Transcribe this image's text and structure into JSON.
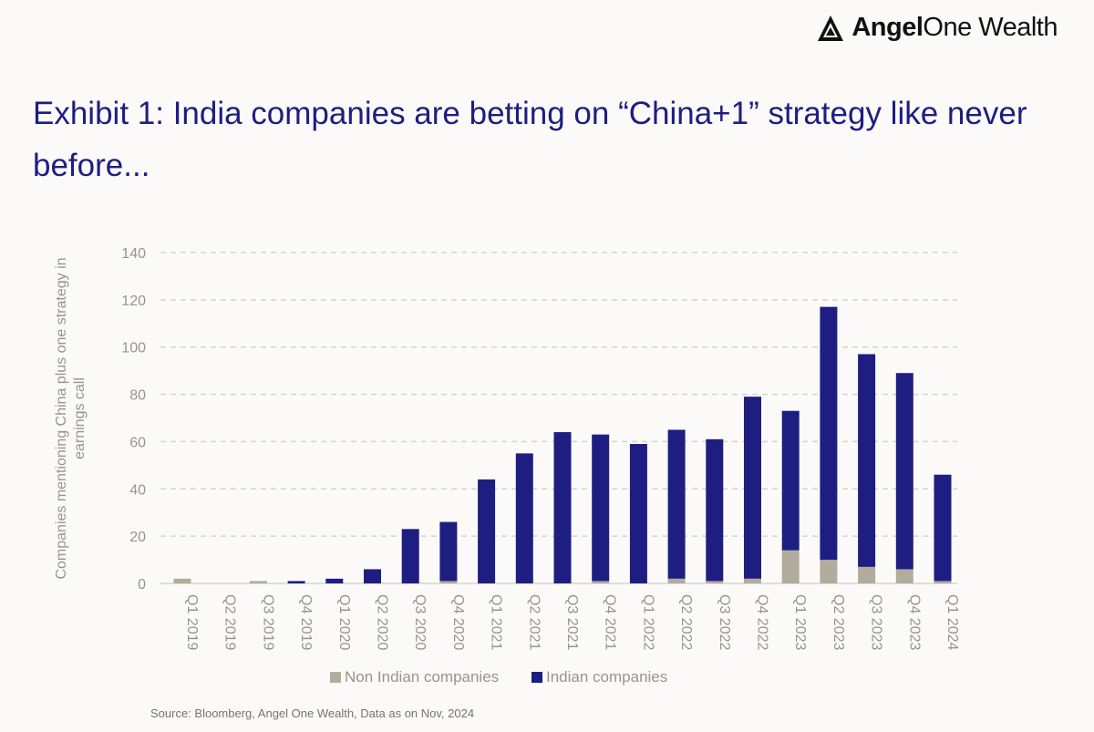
{
  "brand": {
    "name_bold": "Angel",
    "name_rest": "One Wealth",
    "logo": "angelone-triangle-logo"
  },
  "title": "Exhibit 1: India companies are betting on “China+1” strategy like never before...",
  "source": "Source: Bloomberg, Angel One Wealth, Data as on Nov, 2024",
  "colors": {
    "indian": "#1e1e82",
    "non_indian": "#b1ac9c",
    "axis_text": "#9a9488",
    "grid": "#d6d3cd",
    "title": "#1e1e82"
  },
  "chart_data": {
    "type": "bar",
    "stacked": true,
    "title": "Exhibit 1: India companies are betting on “China+1” strategy like never before...",
    "xlabel": "",
    "ylabel": "Companies mentioning China plus one strategy in earnings call",
    "ylim": [
      0,
      140
    ],
    "yticks": [
      0,
      20,
      40,
      60,
      80,
      100,
      120,
      140
    ],
    "grid": true,
    "legend_position": "bottom",
    "categories": [
      "Q1 2019",
      "Q2 2019",
      "Q3 2019",
      "Q4 2019",
      "Q1 2020",
      "Q2 2020",
      "Q3 2020",
      "Q4 2020",
      "Q1 2021",
      "Q2 2021",
      "Q3 2021",
      "Q4 2021",
      "Q1 2022",
      "Q2 2022",
      "Q3 2022",
      "Q4 2022",
      "Q1 2023",
      "Q2 2023",
      "Q3 2023",
      "Q4 2023",
      "Q1 2024"
    ],
    "series": [
      {
        "name": "Non Indian companies",
        "values": [
          2,
          0,
          1,
          0,
          0,
          0,
          0,
          1,
          0,
          0,
          0,
          1,
          0,
          2,
          1,
          2,
          14,
          10,
          7,
          6,
          1
        ]
      },
      {
        "name": "Indian companies",
        "values": [
          0,
          0,
          0,
          1,
          2,
          6,
          23,
          25,
          44,
          55,
          64,
          62,
          59,
          63,
          60,
          77,
          59,
          107,
          90,
          83,
          45
        ]
      }
    ]
  }
}
